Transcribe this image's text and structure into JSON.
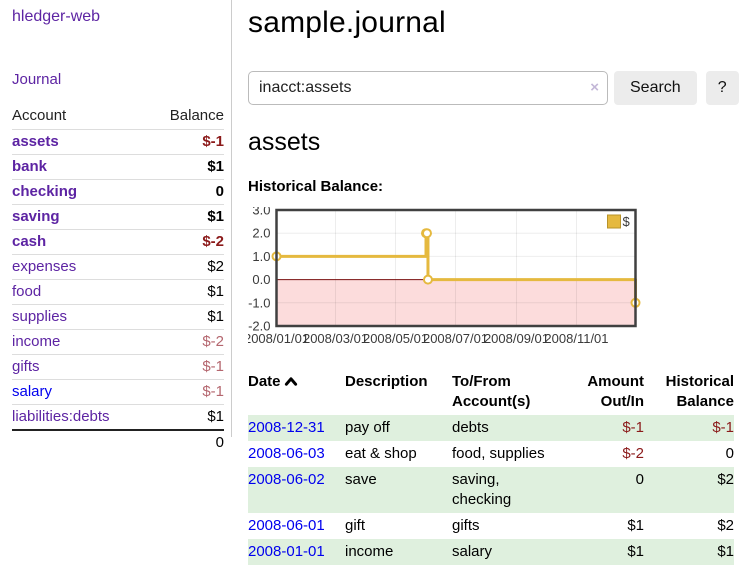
{
  "app": {
    "brand": "hledger-web"
  },
  "colors": {
    "link_purple": "#5d24a3",
    "link_blue": "#0000ee",
    "negative_strong": "#8b1a1a",
    "negative_soft": "#b4666e",
    "stripe_green": "#dff0de"
  },
  "sidebar": {
    "journal_label": "Journal",
    "header": {
      "account": "Account",
      "balance": "Balance"
    },
    "accounts": [
      {
        "name": "assets",
        "depth": 1,
        "balance": "$-1",
        "bold": true,
        "balance_style": "neg-strong"
      },
      {
        "name": "bank",
        "depth": 2,
        "balance": "$1",
        "bold": true,
        "balance_style": ""
      },
      {
        "name": "checking",
        "depth": 3,
        "balance": "0",
        "bold": true,
        "balance_style": ""
      },
      {
        "name": "saving",
        "depth": 3,
        "balance": "$1",
        "bold": true,
        "balance_style": ""
      },
      {
        "name": "cash",
        "depth": 2,
        "balance": "$-2",
        "bold": true,
        "balance_style": "neg-strong"
      },
      {
        "name": "expenses",
        "depth": 1,
        "balance": "$2",
        "bold": false,
        "balance_style": ""
      },
      {
        "name": "food",
        "depth": 2,
        "balance": "$1",
        "bold": false,
        "balance_style": ""
      },
      {
        "name": "supplies",
        "depth": 2,
        "balance": "$1",
        "bold": false,
        "balance_style": ""
      },
      {
        "name": "income",
        "depth": 1,
        "balance": "$-2",
        "bold": false,
        "balance_style": "neg-soft"
      },
      {
        "name": "gifts",
        "depth": 2,
        "balance": "$-1",
        "bold": false,
        "balance_style": "neg-soft"
      },
      {
        "name": "salary",
        "depth": 2,
        "balance": "$-1",
        "bold": false,
        "balance_style": "neg-soft",
        "link_color": "blue"
      },
      {
        "name": "liabilities:debts",
        "depth": 1,
        "balance": "$1",
        "bold": false,
        "balance_style": ""
      }
    ],
    "total": "0"
  },
  "header": {
    "title": "sample.journal"
  },
  "search": {
    "value": "inacct:assets",
    "clear_glyph": "×",
    "button_label": "Search",
    "help_label": "?"
  },
  "account_page": {
    "title": "assets",
    "chart_label": "Historical Balance:"
  },
  "chart_data": {
    "type": "line",
    "title": "Historical Balance:",
    "series": [
      {
        "name": "$",
        "step": true,
        "points": [
          [
            "2008-01-01",
            1
          ],
          [
            "2008-06-01",
            2
          ],
          [
            "2008-06-02",
            2
          ],
          [
            "2008-06-03",
            0
          ],
          [
            "2008-12-31",
            -1
          ]
        ]
      }
    ],
    "ylim": [
      -2,
      3
    ],
    "yticks": [
      3,
      2,
      1,
      0,
      -1,
      -2
    ],
    "ytick_labels": [
      "3.0",
      "2.0",
      "1.0",
      "0.0",
      "-1.0",
      "-2.0"
    ],
    "xtick_dates": [
      "2008-01-01",
      "2008-03-01",
      "2008-05-01",
      "2008-07-01",
      "2008-09-01",
      "2008-11-01"
    ],
    "xtick_labels": [
      "2008/01/01",
      "2008/03/01",
      "2008/05/01",
      "2008/07/01",
      "2008/09/01",
      "2008/11/01"
    ],
    "x_range": [
      "2008-01-01",
      "2008-12-31"
    ],
    "legend": {
      "label": "$",
      "position": "top-right"
    },
    "grid": true,
    "colors": {
      "line": "#e5b93f",
      "marker_fill": "#ffffff",
      "negative_fill": "#fcdcdc",
      "zero_line": "#7a0f0f",
      "grid": "rgba(0,0,0,0.07)",
      "border": "#404040",
      "legend_fill": "#e5b93f",
      "legend_border": "#b8932a"
    }
  },
  "register": {
    "columns": [
      "Date",
      "Description",
      "To/From Account(s)",
      "Amount Out/In",
      "Historical Balance"
    ],
    "sort": "ascending",
    "rows": [
      {
        "date": "2008-12-31",
        "description": "pay off",
        "accounts": "debts",
        "amount": "$-1",
        "amount_neg": true,
        "balance": "$-1",
        "balance_neg": true
      },
      {
        "date": "2008-06-03",
        "description": "eat & shop",
        "accounts": "food, supplies",
        "amount": "$-2",
        "amount_neg": true,
        "balance": "0",
        "balance_neg": false
      },
      {
        "date": "2008-06-02",
        "description": "save",
        "accounts": "saving, checking",
        "amount": "0",
        "amount_neg": false,
        "balance": "$2",
        "balance_neg": false
      },
      {
        "date": "2008-06-01",
        "description": "gift",
        "accounts": "gifts",
        "amount": "$1",
        "amount_neg": false,
        "balance": "$2",
        "balance_neg": false
      },
      {
        "date": "2008-01-01",
        "description": "income",
        "accounts": "salary",
        "amount": "$1",
        "amount_neg": false,
        "balance": "$1",
        "balance_neg": false
      }
    ]
  }
}
